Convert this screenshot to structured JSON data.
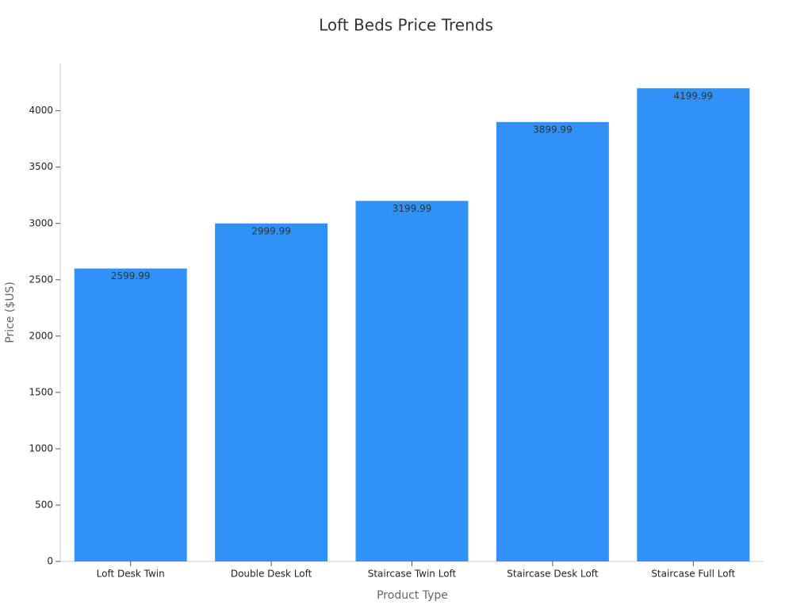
{
  "chart_data": {
    "type": "bar",
    "title": "Loft Beds Price Trends",
    "x_label": "Product Type",
    "y_label": "Price ($US)",
    "categories": [
      "Loft Desk Twin",
      "Double Desk Loft",
      "Staircase Twin Loft",
      "Staircase Desk Loft",
      "Staircase Full Loft"
    ],
    "values": [
      2599.99,
      2999.99,
      3199.99,
      3899.99,
      4199.99
    ],
    "color": "#3092f9",
    "ylim": [
      0,
      4420
    ],
    "yticks": [
      0,
      500,
      1000,
      1500,
      2000,
      2500,
      3000,
      3500,
      4000
    ],
    "grid": false
  }
}
